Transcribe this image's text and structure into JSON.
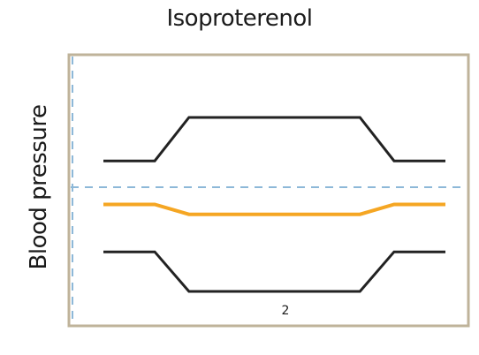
{
  "title": "Isoproterenol",
  "ylabel": "Blood pressure",
  "annotation": "2",
  "colors": {
    "frame": "#bfb39a",
    "guide": "#8db8d8",
    "pressure_line": "#222222",
    "mean_line": "#f5a623",
    "background": "#ffffff"
  },
  "chart_data": {
    "type": "line",
    "title": "Isoproterenol",
    "ylabel": "Blood pressure",
    "xlabel": "",
    "grid": false,
    "series": [
      {
        "style": "black",
        "role": "upper",
        "x": [
          0,
          15,
          25,
          75,
          85,
          100
        ],
        "y": [
          0.62,
          0.62,
          0.84,
          0.84,
          0.62,
          0.62
        ]
      },
      {
        "style": "orange",
        "role": "middle",
        "x": [
          0,
          15,
          25,
          75,
          85,
          100
        ],
        "y": [
          0.4,
          0.4,
          0.35,
          0.35,
          0.4,
          0.4
        ]
      },
      {
        "style": "black",
        "role": "lower",
        "x": [
          0,
          15,
          25,
          75,
          85,
          100
        ],
        "y": [
          0.16,
          0.16,
          -0.04,
          -0.04,
          0.16,
          0.16
        ]
      }
    ]
  }
}
